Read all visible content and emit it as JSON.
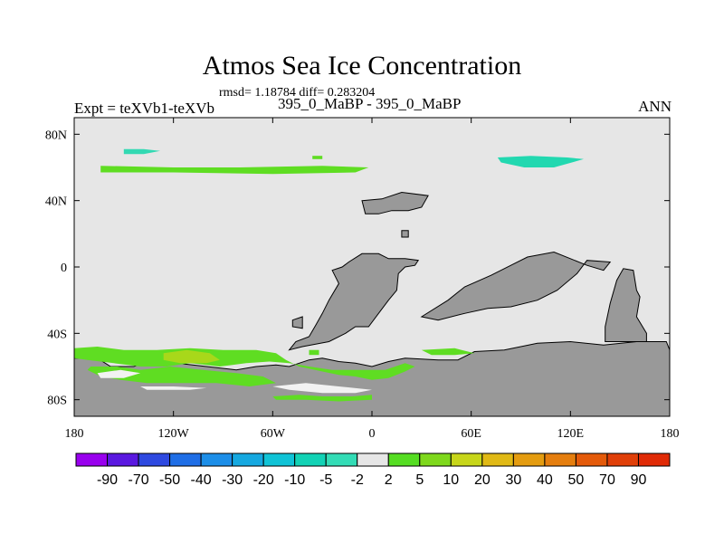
{
  "header": {
    "title": "Atmos Sea Ice Concentration",
    "stats": "rmsd= 1.18784 diff= 0.283204",
    "experiment": "Expt = teXVb1-teXVb",
    "subtitle": "395_0_MaBP - 395_0_MaBP",
    "season": "ANN"
  },
  "chart_data": {
    "type": "heatmap",
    "title": "Atmos Sea Ice Concentration",
    "subtitle": "395_0_MaBP - 395_0_MaBP",
    "xlim": [
      -180,
      180
    ],
    "ylim": [
      -90,
      90
    ],
    "x_ticks": [
      {
        "value": -180,
        "label": "180"
      },
      {
        "value": -120,
        "label": "120W"
      },
      {
        "value": -60,
        "label": "60W"
      },
      {
        "value": 0,
        "label": "0"
      },
      {
        "value": 60,
        "label": "60E"
      },
      {
        "value": 120,
        "label": "120E"
      },
      {
        "value": 180,
        "label": "180"
      }
    ],
    "y_ticks": [
      {
        "value": 80,
        "label": "80N"
      },
      {
        "value": 40,
        "label": "40N"
      },
      {
        "value": 0,
        "label": "0"
      },
      {
        "value": -40,
        "label": "40S"
      },
      {
        "value": -80,
        "label": "80S"
      }
    ],
    "colorbar": {
      "levels": [
        "-90",
        "-70",
        "-50",
        "-40",
        "-30",
        "-20",
        "-10",
        "-5",
        "-2",
        "2",
        "5",
        "10",
        "20",
        "30",
        "40",
        "50",
        "70",
        "90"
      ],
      "colors": [
        "#9900ee",
        "#5a18e0",
        "#2e49e0",
        "#1f6ee6",
        "#1c8ee8",
        "#15a8e0",
        "#10c3d6",
        "#12d2b5",
        "#33dcb6",
        "#e6e6e6",
        "#55dd22",
        "#7ed81c",
        "#c7d61a",
        "#e0b915",
        "#e49c10",
        "#e57e0e",
        "#e45a0a",
        "#e03f08",
        "#e02a06"
      ]
    },
    "background_color": "#e6e6e6",
    "land_color": "#999999",
    "features": [
      {
        "type": "land",
        "points": [
          [
            -180,
            -55
          ],
          [
            -166,
            -55
          ],
          [
            -158,
            -60
          ],
          [
            -144,
            -60
          ],
          [
            -138,
            -58
          ],
          [
            -118,
            -58
          ],
          [
            -100,
            -60
          ],
          [
            -82,
            -62
          ],
          [
            -70,
            -60
          ],
          [
            -58,
            -59
          ],
          [
            -50,
            -60
          ],
          [
            -38,
            -56
          ],
          [
            -30,
            -55
          ],
          [
            -20,
            -57
          ],
          [
            -10,
            -58
          ],
          [
            0,
            -60
          ],
          [
            10,
            -57
          ],
          [
            20,
            -55
          ],
          [
            40,
            -56
          ],
          [
            52,
            -56
          ],
          [
            62,
            -51
          ],
          [
            80,
            -50
          ],
          [
            100,
            -46
          ],
          [
            120,
            -45
          ],
          [
            140,
            -47
          ],
          [
            160,
            -45
          ],
          [
            178,
            -45
          ],
          [
            180,
            -50
          ],
          [
            180,
            -90
          ],
          [
            -180,
            -90
          ]
        ]
      },
      {
        "type": "land",
        "points": [
          [
            -50,
            -50
          ],
          [
            -42,
            -48
          ],
          [
            -26,
            -45
          ],
          [
            -16,
            -40
          ],
          [
            -10,
            -36
          ],
          [
            -2,
            -36
          ],
          [
            4,
            -28
          ],
          [
            10,
            -20
          ],
          [
            15,
            -14
          ],
          [
            16,
            -4
          ],
          [
            20,
            0
          ],
          [
            26,
            1
          ],
          [
            28,
            4
          ],
          [
            20,
            5
          ],
          [
            10,
            5
          ],
          [
            4,
            8
          ],
          [
            -6,
            8
          ],
          [
            -14,
            3
          ],
          [
            -18,
            0
          ],
          [
            -24,
            -2
          ],
          [
            -20,
            -10
          ],
          [
            -26,
            -20
          ],
          [
            -30,
            -28
          ],
          [
            -34,
            -35
          ],
          [
            -38,
            -42
          ],
          [
            -46,
            -45
          ],
          [
            -50,
            -50
          ]
        ]
      },
      {
        "type": "land",
        "points": [
          [
            -48,
            -32
          ],
          [
            -42,
            -30
          ],
          [
            -42,
            -37
          ],
          [
            -48,
            -36
          ]
        ]
      },
      {
        "type": "land",
        "points": [
          [
            -6,
            40
          ],
          [
            6,
            41
          ],
          [
            18,
            45
          ],
          [
            34,
            43
          ],
          [
            30,
            36
          ],
          [
            22,
            34
          ],
          [
            12,
            34
          ],
          [
            4,
            32
          ],
          [
            -4,
            32
          ]
        ]
      },
      {
        "type": "land",
        "points": [
          [
            30,
            -30
          ],
          [
            46,
            -20
          ],
          [
            56,
            -12
          ],
          [
            72,
            -5
          ],
          [
            84,
            1
          ],
          [
            94,
            6
          ],
          [
            110,
            9
          ],
          [
            120,
            5
          ],
          [
            130,
            1
          ],
          [
            140,
            -2
          ],
          [
            144,
            3
          ],
          [
            130,
            4
          ],
          [
            124,
            -4
          ],
          [
            112,
            -14
          ],
          [
            100,
            -20
          ],
          [
            84,
            -24
          ],
          [
            70,
            -25
          ],
          [
            56,
            -28
          ],
          [
            40,
            -32
          ]
        ]
      },
      {
        "type": "land",
        "points": [
          [
            141,
            -45
          ],
          [
            141,
            -36
          ],
          [
            144,
            -22
          ],
          [
            148,
            -8
          ],
          [
            152,
            -1
          ],
          [
            158,
            -2
          ],
          [
            160,
            -14
          ],
          [
            162,
            -18
          ],
          [
            160,
            -30
          ],
          [
            166,
            -40
          ],
          [
            166,
            -45
          ]
        ]
      },
      {
        "type": "land",
        "points": [
          [
            18,
            22
          ],
          [
            22,
            22
          ],
          [
            22,
            18
          ],
          [
            18,
            18
          ]
        ]
      },
      {
        "type": "ice",
        "color": "#5fdd22",
        "points": [
          [
            -180,
            -49
          ],
          [
            -166,
            -48
          ],
          [
            -150,
            -50
          ],
          [
            -130,
            -50
          ],
          [
            -110,
            -49
          ],
          [
            -90,
            -50
          ],
          [
            -70,
            -50
          ],
          [
            -58,
            -52
          ],
          [
            -52,
            -56
          ],
          [
            -44,
            -60
          ],
          [
            -30,
            -63
          ],
          [
            -20,
            -65
          ],
          [
            -10,
            -66
          ],
          [
            0,
            -68
          ],
          [
            10,
            -67
          ],
          [
            20,
            -63
          ],
          [
            26,
            -60
          ],
          [
            20,
            -58
          ],
          [
            8,
            -62
          ],
          [
            -6,
            -62
          ],
          [
            -24,
            -62
          ],
          [
            -38,
            -60
          ],
          [
            -50,
            -58
          ],
          [
            -62,
            -57
          ],
          [
            -76,
            -58
          ],
          [
            -92,
            -60
          ],
          [
            -110,
            -58
          ],
          [
            -124,
            -60
          ],
          [
            -140,
            -60
          ],
          [
            -156,
            -58
          ],
          [
            -172,
            -56
          ],
          [
            -180,
            -55
          ]
        ]
      },
      {
        "type": "ice",
        "color": "#a8d81a",
        "points": [
          [
            -126,
            -52
          ],
          [
            -112,
            -50
          ],
          [
            -98,
            -52
          ],
          [
            -92,
            -56
          ],
          [
            -100,
            -58
          ],
          [
            -116,
            -58
          ],
          [
            -126,
            -56
          ]
        ]
      },
      {
        "type": "ice",
        "color": "#5fdd22",
        "points": [
          [
            -170,
            -60
          ],
          [
            -154,
            -60
          ],
          [
            -140,
            -62
          ],
          [
            -122,
            -60
          ],
          [
            -102,
            -62
          ],
          [
            -82,
            -64
          ],
          [
            -66,
            -66
          ],
          [
            -58,
            -70
          ],
          [
            -74,
            -72
          ],
          [
            -94,
            -70
          ],
          [
            -116,
            -70
          ],
          [
            -136,
            -70
          ],
          [
            -152,
            -68
          ],
          [
            -164,
            -66
          ],
          [
            -172,
            -62
          ]
        ]
      },
      {
        "type": "ice",
        "color": "#5fdd22",
        "points": [
          [
            -60,
            -78
          ],
          [
            -44,
            -77
          ],
          [
            -30,
            -78
          ],
          [
            -12,
            -78
          ],
          [
            0,
            -77
          ],
          [
            0,
            -80
          ],
          [
            -20,
            -81
          ],
          [
            -40,
            -80
          ],
          [
            -58,
            -80
          ]
        ]
      },
      {
        "type": "ice",
        "color": "#5fdd22",
        "points": [
          [
            -38,
            -50
          ],
          [
            -32,
            -50
          ],
          [
            -32,
            -53
          ],
          [
            -38,
            -53
          ]
        ]
      },
      {
        "type": "ice",
        "color": "#5fdd22",
        "points": [
          [
            30,
            -50
          ],
          [
            50,
            -49
          ],
          [
            62,
            -52
          ],
          [
            50,
            -53
          ],
          [
            36,
            -53
          ]
        ]
      },
      {
        "type": "ice",
        "color": "#5fdd22",
        "points": [
          [
            -164,
            61
          ],
          [
            -120,
            60
          ],
          [
            -80,
            60
          ],
          [
            -30,
            61
          ],
          [
            -2,
            60
          ],
          [
            -10,
            57
          ],
          [
            -60,
            56
          ],
          [
            -120,
            57
          ],
          [
            -164,
            57
          ]
        ]
      },
      {
        "type": "ice",
        "color": "#33d9b3",
        "points": [
          [
            -150,
            71
          ],
          [
            -138,
            71
          ],
          [
            -128,
            70
          ],
          [
            -138,
            68
          ],
          [
            -150,
            68
          ]
        ]
      },
      {
        "type": "ice",
        "color": "#5fdd22",
        "points": [
          [
            -36,
            67
          ],
          [
            -30,
            67
          ],
          [
            -30,
            65
          ],
          [
            -36,
            65
          ]
        ]
      },
      {
        "type": "ice",
        "color": "#22d8b0",
        "points": [
          [
            76,
            66
          ],
          [
            96,
            67
          ],
          [
            118,
            66
          ],
          [
            128,
            65
          ],
          [
            110,
            60
          ],
          [
            92,
            60
          ],
          [
            78,
            63
          ]
        ]
      },
      {
        "type": "ice",
        "color": "#f2f2f2",
        "points": [
          [
            -166,
            -64
          ],
          [
            -152,
            -62
          ],
          [
            -140,
            -64
          ],
          [
            -150,
            -67
          ],
          [
            -164,
            -67
          ]
        ]
      },
      {
        "type": "ice",
        "color": "#f2f2f2",
        "points": [
          [
            -60,
            -72
          ],
          [
            -40,
            -70
          ],
          [
            -20,
            -72
          ],
          [
            0,
            -74
          ],
          [
            -10,
            -76
          ],
          [
            -30,
            -76
          ],
          [
            -50,
            -74
          ]
        ]
      },
      {
        "type": "ice",
        "color": "#f2f2f2",
        "points": [
          [
            -140,
            -72
          ],
          [
            -120,
            -72
          ],
          [
            -100,
            -73
          ],
          [
            -110,
            -74
          ],
          [
            -136,
            -74
          ]
        ]
      }
    ]
  }
}
